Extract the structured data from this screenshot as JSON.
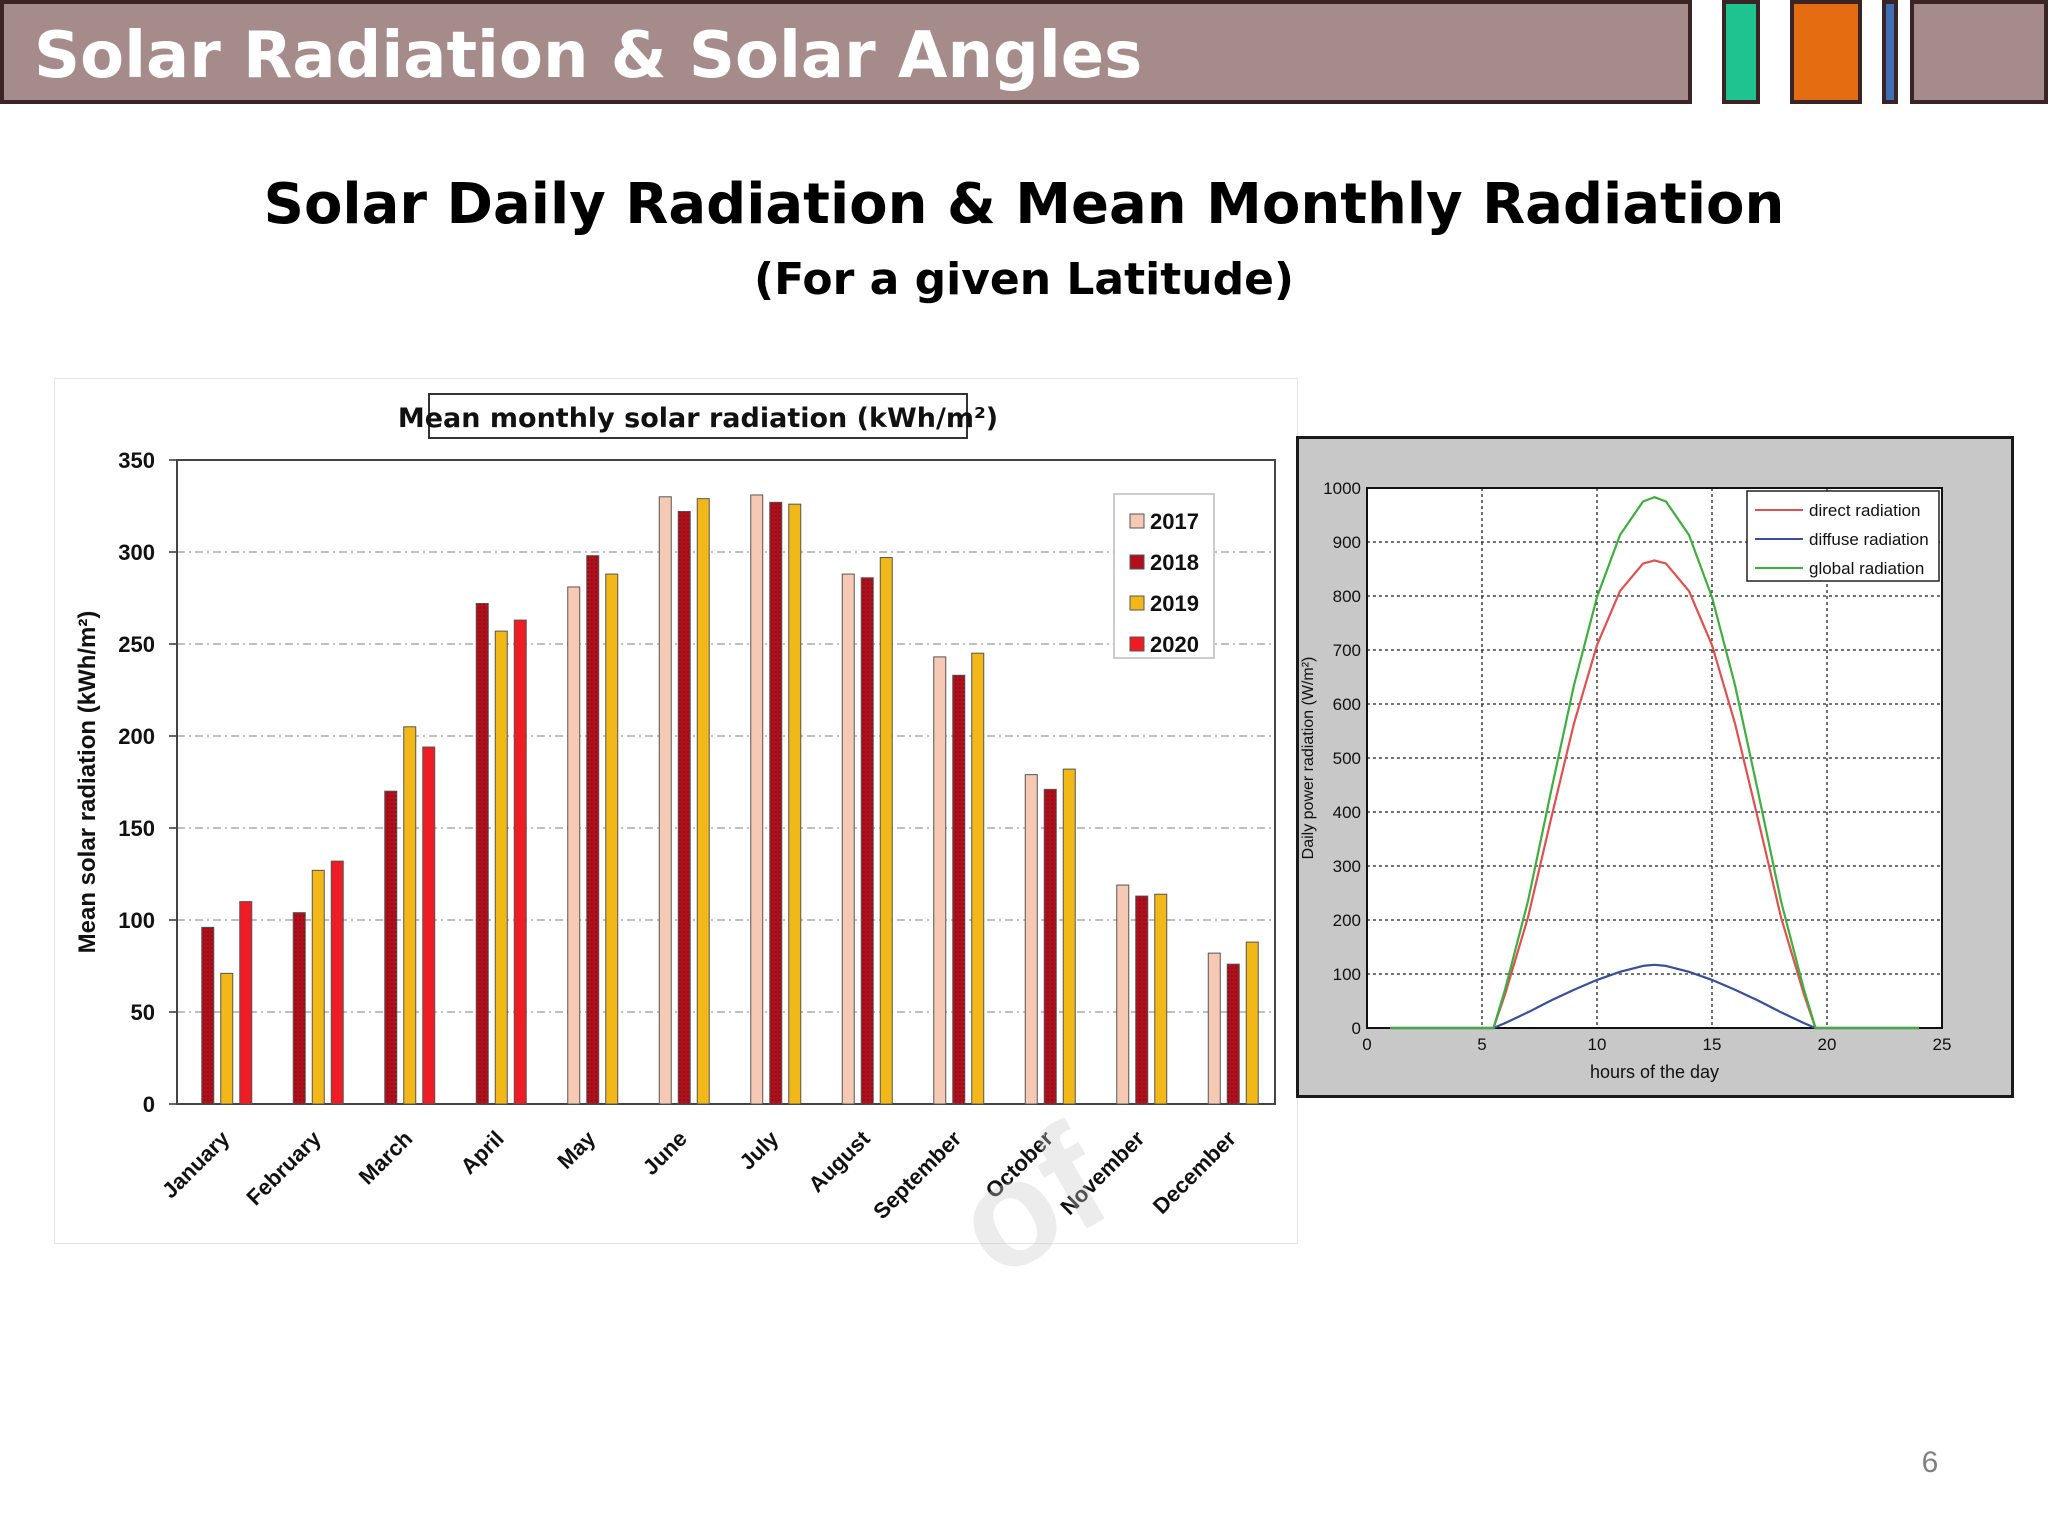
{
  "header": {
    "title": "Solar Radiation & Solar Angles",
    "bar_color": "#a68b8b",
    "accent_colors": [
      "#1fc38f",
      "#e36d10",
      "#3f6fb5"
    ]
  },
  "slide": {
    "title": "Solar Daily Radiation & Mean Monthly Radiation",
    "subtitle": "(For a given Latitude)",
    "page_number": "6"
  },
  "chart_data": [
    {
      "type": "bar",
      "title": "Mean monthly solar radiation (kWh/m²)",
      "xlabel": "",
      "ylabel": "Mean solar radiation (kWh/m²)",
      "ylim": [
        0,
        350
      ],
      "yticks": [
        0,
        50,
        100,
        150,
        200,
        250,
        300,
        350
      ],
      "grid": true,
      "legend_position": "top-right",
      "categories": [
        "January",
        "February",
        "March",
        "April",
        "May",
        "June",
        "July",
        "August",
        "September",
        "October",
        "November",
        "December"
      ],
      "series": [
        {
          "name": "2017",
          "color": "#f5c9b3",
          "values": [
            null,
            null,
            null,
            null,
            281,
            330,
            331,
            288,
            243,
            179,
            119,
            82
          ]
        },
        {
          "name": "2018",
          "color": "#b0101c",
          "values": [
            96,
            104,
            170,
            272,
            298,
            322,
            327,
            286,
            233,
            171,
            113,
            76
          ]
        },
        {
          "name": "2019",
          "color": "#f2b818",
          "values": [
            71,
            127,
            205,
            257,
            288,
            329,
            326,
            297,
            245,
            182,
            114,
            88
          ]
        },
        {
          "name": "2020",
          "color": "#ee1c24",
          "values": [
            110,
            132,
            194,
            263,
            null,
            null,
            null,
            null,
            null,
            null,
            null,
            null
          ]
        }
      ]
    },
    {
      "type": "line",
      "title": "",
      "xlabel": "hours of the day",
      "ylabel": "Daily power radiation (W/m²)",
      "xlim": [
        0,
        25
      ],
      "ylim": [
        0,
        1000
      ],
      "xticks": [
        0,
        5,
        10,
        15,
        20,
        25
      ],
      "yticks": [
        0,
        100,
        200,
        300,
        400,
        500,
        600,
        700,
        800,
        900,
        1000
      ],
      "grid": true,
      "legend_position": "top-right",
      "x": [
        1,
        2,
        3,
        4,
        5,
        5.5,
        6,
        7,
        8,
        9,
        10,
        11,
        12,
        12.5,
        13,
        14,
        15,
        16,
        17,
        18,
        19,
        19.5,
        20,
        21,
        22,
        23,
        24
      ],
      "series": [
        {
          "name": "direct radiation",
          "color": "#e05050",
          "values": [
            0,
            0,
            0,
            0,
            0,
            0,
            62,
            205,
            387,
            564,
            709,
            809,
            860,
            866,
            860,
            809,
            709,
            564,
            387,
            205,
            62,
            0,
            0,
            0,
            0,
            0,
            0
          ]
        },
        {
          "name": "diffuse radiation",
          "color": "#3a4f9a",
          "values": [
            0,
            0,
            0,
            0,
            0,
            0,
            9,
            29,
            51,
            71,
            89,
            104,
            115,
            117,
            115,
            104,
            89,
            71,
            51,
            29,
            9,
            0,
            0,
            0,
            0,
            0,
            0
          ]
        },
        {
          "name": "global radiation",
          "color": "#3eae3e",
          "values": [
            0,
            0,
            0,
            0,
            0,
            0,
            71,
            235,
            438,
            635,
            798,
            913,
            975,
            983,
            975,
            913,
            798,
            635,
            438,
            235,
            71,
            0,
            0,
            0,
            0,
            0,
            0
          ]
        }
      ]
    }
  ]
}
